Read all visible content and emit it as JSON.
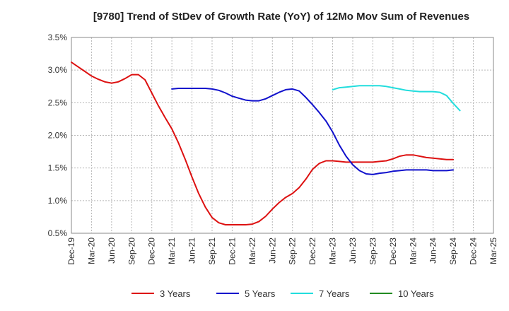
{
  "chart_data": {
    "type": "line",
    "title": "[9780]  Trend of StDev of Growth Rate (YoY) of 12Mo Mov Sum of Revenues",
    "xlabel": "",
    "ylabel": "",
    "ylim": [
      0.5,
      3.5
    ],
    "y_ticks": [
      "0.5%",
      "1.0%",
      "1.5%",
      "2.0%",
      "2.5%",
      "3.0%",
      "3.5%"
    ],
    "x_ticks": [
      "Dec-19",
      "Mar-20",
      "Jun-20",
      "Sep-20",
      "Dec-20",
      "Mar-21",
      "Jun-21",
      "Sep-21",
      "Dec-21",
      "Mar-22",
      "Jun-22",
      "Sep-22",
      "Dec-22",
      "Mar-23",
      "Jun-23",
      "Sep-23",
      "Dec-23",
      "Mar-24",
      "Jun-24",
      "Sep-24",
      "Dec-24",
      "Mar-25"
    ],
    "grid": true,
    "legend_position": "bottom",
    "series": [
      {
        "name": "3 Years",
        "color": "#dd1111",
        "x_start": 0,
        "values": [
          3.12,
          3.05,
          2.98,
          2.91,
          2.86,
          2.82,
          2.8,
          2.82,
          2.87,
          2.93,
          2.93,
          2.85,
          2.65,
          2.45,
          2.27,
          2.1,
          1.88,
          1.63,
          1.36,
          1.11,
          0.9,
          0.74,
          0.66,
          0.63,
          0.63,
          0.63,
          0.63,
          0.64,
          0.68,
          0.76,
          0.87,
          0.97,
          1.05,
          1.11,
          1.2,
          1.33,
          1.48,
          1.57,
          1.61,
          1.61,
          1.6,
          1.59,
          1.59,
          1.59,
          1.59,
          1.59,
          1.6,
          1.61,
          1.64,
          1.68,
          1.7,
          1.7,
          1.68,
          1.66,
          1.65,
          1.64,
          1.63,
          1.63
        ]
      },
      {
        "name": "5 Years",
        "color": "#1111cc",
        "x_start": 15,
        "values": [
          2.71,
          2.72,
          2.72,
          2.72,
          2.72,
          2.72,
          2.71,
          2.69,
          2.65,
          2.6,
          2.57,
          2.54,
          2.53,
          2.53,
          2.56,
          2.61,
          2.66,
          2.7,
          2.71,
          2.68,
          2.58,
          2.47,
          2.35,
          2.22,
          2.05,
          1.85,
          1.68,
          1.55,
          1.46,
          1.41,
          1.4,
          1.42,
          1.43,
          1.45,
          1.46,
          1.47,
          1.47,
          1.47,
          1.47,
          1.46,
          1.46,
          1.46,
          1.47
        ]
      },
      {
        "name": "7 Years",
        "color": "#22dddd",
        "x_start": 39,
        "values": [
          2.7,
          2.73,
          2.74,
          2.75,
          2.76,
          2.76,
          2.76,
          2.76,
          2.75,
          2.73,
          2.71,
          2.69,
          2.68,
          2.67,
          2.67,
          2.67,
          2.66,
          2.61,
          2.49,
          2.38
        ]
      },
      {
        "name": "10 Years",
        "color": "#228B22",
        "x_start": 0,
        "values": []
      }
    ]
  }
}
